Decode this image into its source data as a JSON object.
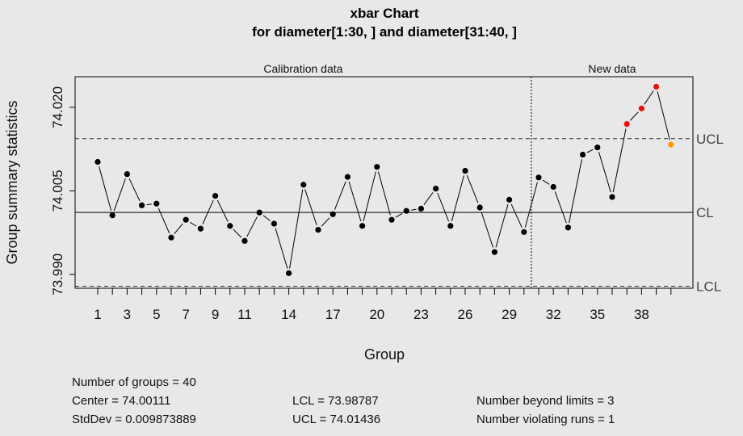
{
  "chart_data": {
    "type": "line",
    "title": "xbar Chart",
    "subtitle": "for diameter[1:30, ] and diameter[31:40, ]",
    "xlabel": "Group",
    "ylabel": "Group summary statistics",
    "regions": [
      {
        "label": "Calibration data",
        "from": 1,
        "to": 30
      },
      {
        "label": "New data",
        "from": 31,
        "to": 40
      }
    ],
    "x": [
      1,
      2,
      3,
      4,
      5,
      6,
      7,
      8,
      9,
      10,
      11,
      12,
      13,
      14,
      15,
      16,
      17,
      18,
      19,
      20,
      21,
      22,
      23,
      24,
      25,
      26,
      27,
      28,
      29,
      30,
      31,
      32,
      33,
      34,
      35,
      36,
      37,
      38,
      39,
      40
    ],
    "values": [
      74.0102,
      74.0006,
      74.008,
      74.0024,
      74.0027,
      73.9966,
      73.9998,
      73.9982,
      74.0041,
      73.9987,
      73.996,
      74.0011,
      73.9991,
      73.9902,
      74.0061,
      73.998,
      74.0008,
      74.0075,
      73.9987,
      74.0093,
      73.9998,
      74.0014,
      74.0018,
      74.0054,
      73.9987,
      74.0086,
      74.002,
      73.994,
      74.0034,
      73.9976,
      74.0074,
      74.0057,
      73.9984,
      74.0115,
      74.0128,
      74.0039,
      74.017,
      74.0198,
      74.0237,
      74.0133
    ],
    "point_status": [
      "normal",
      "normal",
      "normal",
      "normal",
      "normal",
      "normal",
      "normal",
      "normal",
      "normal",
      "normal",
      "normal",
      "normal",
      "normal",
      "normal",
      "normal",
      "normal",
      "normal",
      "normal",
      "normal",
      "normal",
      "normal",
      "normal",
      "normal",
      "normal",
      "normal",
      "normal",
      "normal",
      "normal",
      "normal",
      "normal",
      "normal",
      "normal",
      "normal",
      "normal",
      "normal",
      "normal",
      "beyond",
      "beyond",
      "beyond",
      "violating-run"
    ],
    "status_colors": {
      "normal": "#000000",
      "beyond": "#ee1111",
      "violating-run": "#ff9900"
    },
    "limits": {
      "center": 74.00111,
      "lcl": 73.98787,
      "ucl": 74.01436
    },
    "limit_labels": {
      "ucl": "UCL",
      "cl": "CL",
      "lcl": "LCL"
    },
    "ylim": [
      73.9875,
      74.0255
    ],
    "yticks": [
      73.99,
      74.005,
      74.02
    ],
    "ytick_labels": [
      "73.990",
      "74.005",
      "74.020"
    ],
    "xticks_labeled": [
      1,
      3,
      5,
      7,
      9,
      11,
      14,
      17,
      20,
      23,
      26,
      29,
      32,
      35,
      38
    ],
    "grid": false,
    "legend": "none"
  },
  "stats": {
    "groups": "Number of groups = 40",
    "center": "Center = 74.00111",
    "stddev": "StdDev = 0.009873889",
    "lcl": "LCL = 73.98787",
    "ucl": "UCL = 74.01436",
    "beyond": "Number beyond limits = 3",
    "violating": "Number violating runs = 1"
  }
}
